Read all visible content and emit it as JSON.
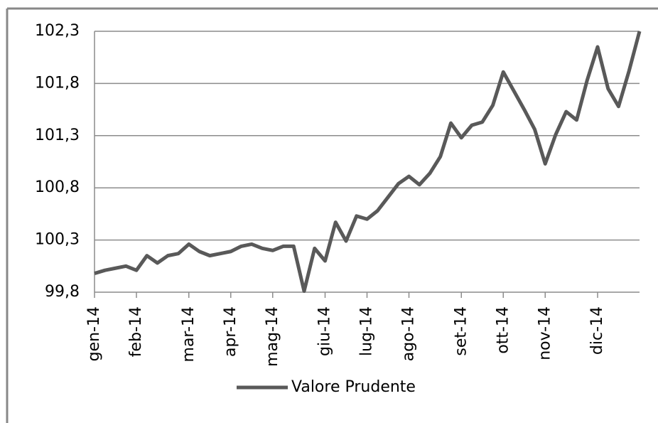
{
  "chart_data": {
    "type": "line",
    "categories": [
      "gen-14",
      null,
      null,
      null,
      "feb-14",
      null,
      null,
      null,
      null,
      "mar-14",
      null,
      null,
      null,
      "apr-14",
      null,
      null,
      null,
      "mag-14",
      null,
      null,
      null,
      null,
      "giu-14",
      null,
      null,
      null,
      "lug-14",
      null,
      null,
      null,
      "ago-14",
      null,
      null,
      null,
      null,
      "set-14",
      null,
      null,
      null,
      "ott-14",
      null,
      null,
      null,
      "nov-14",
      null,
      null,
      null,
      null,
      "dic-14",
      null,
      null,
      null,
      null
    ],
    "series": [
      {
        "name": "Valore Prudente",
        "color": "#595959",
        "values": [
          99.98,
          100.01,
          100.03,
          100.05,
          100.01,
          100.15,
          100.08,
          100.15,
          100.17,
          100.26,
          100.19,
          100.15,
          100.17,
          100.19,
          100.24,
          100.26,
          100.22,
          100.2,
          100.24,
          100.24,
          99.81,
          100.22,
          100.1,
          100.47,
          100.29,
          100.53,
          100.5,
          100.58,
          100.71,
          100.84,
          100.91,
          100.83,
          100.94,
          101.1,
          101.42,
          101.28,
          101.4,
          101.43,
          101.59,
          101.91,
          101.73,
          101.55,
          101.36,
          101.03,
          101.31,
          101.53,
          101.45,
          101.83,
          102.15,
          101.75,
          101.58,
          101.92,
          102.3
        ]
      }
    ],
    "ylim": [
      99.8,
      102.3
    ],
    "yticks": [
      {
        "value": 99.8,
        "label": "99,8"
      },
      {
        "value": 100.3,
        "label": "100,3"
      },
      {
        "value": 100.8,
        "label": "100,8"
      },
      {
        "value": 101.3,
        "label": "101,3"
      },
      {
        "value": 101.8,
        "label": "101,8"
      },
      {
        "value": 102.3,
        "label": "102,3"
      }
    ],
    "grid": true,
    "legend": "bottom"
  }
}
